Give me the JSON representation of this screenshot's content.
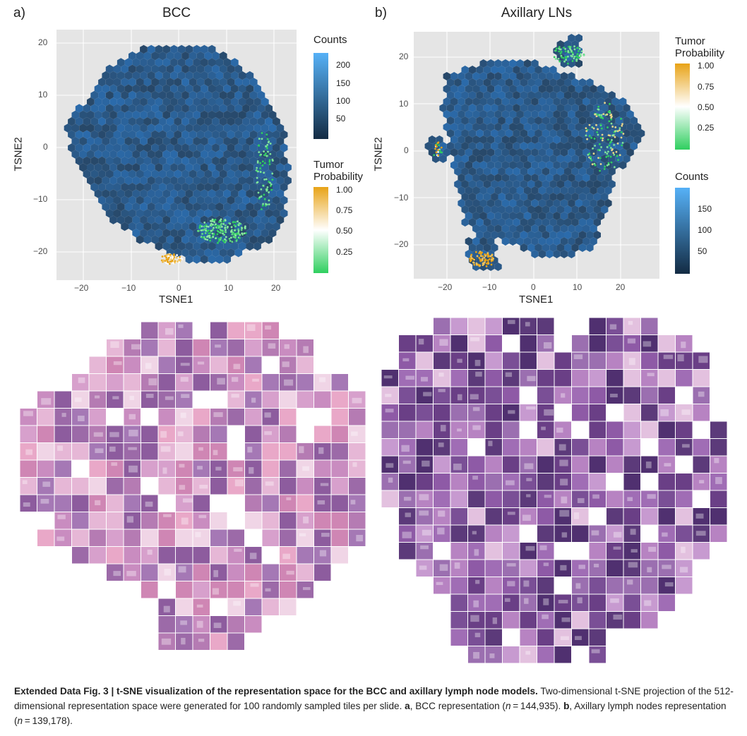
{
  "panel_a": {
    "label": "a)",
    "title": "BCC",
    "xlabel": "TSNE1",
    "ylabel": "TSNE2",
    "x_ticks": [
      "−20",
      "−10",
      "0",
      "10",
      "20"
    ],
    "y_ticks": [
      "20",
      "10",
      "0",
      "−10",
      "−20"
    ],
    "legend_counts": {
      "title": "Counts",
      "ticks": [
        "200",
        "150",
        "100",
        "50"
      ]
    },
    "legend_tumor": {
      "title_line1": "Tumor",
      "title_line2": "Probability",
      "ticks": [
        "1.00",
        "0.75",
        "0.50",
        "0.25"
      ]
    }
  },
  "panel_b": {
    "label": "b)",
    "title": "Axillary LNs",
    "xlabel": "TSNE1",
    "ylabel": "TSNE2",
    "x_ticks": [
      "−20",
      "−10",
      "0",
      "10",
      "20"
    ],
    "y_ticks": [
      "20",
      "10",
      "0",
      "−10",
      "−20"
    ],
    "legend_tumor": {
      "title_line1": "Tumor",
      "title_line2": "Probability",
      "ticks": [
        "1.00",
        "0.75",
        "0.50",
        "0.25"
      ]
    },
    "legend_counts": {
      "title": "Counts",
      "ticks": [
        "150",
        "100",
        "50"
      ]
    }
  },
  "colors": {
    "panel_bg": "#e5e5e5",
    "hex_base": "#2f5f8f",
    "tumor_low": "#2fcf5f",
    "tumor_mid": "#ffffff",
    "tumor_high": "#e8a317",
    "counts_low": "#132b43",
    "counts_high": "#56b1f7"
  },
  "caption": {
    "bold_lead": "Extended Data Fig. 3 | t-SNE visualization of the representation space for the BCC and axillary lymph node models.",
    "text_1": " Two-dimensional t-SNE projection of the 512-dimensional representation space were generated for 100 randomly sampled tiles per slide. ",
    "a_bold": "a",
    "text_2": ", BCC representation (",
    "n_italic_1": "n",
    "text_3": " = 144,935). ",
    "b_bold": "b",
    "text_4": ", Axillary lymph nodes representation (",
    "n_italic_2": "n",
    "text_5": " = 139,178)."
  }
}
